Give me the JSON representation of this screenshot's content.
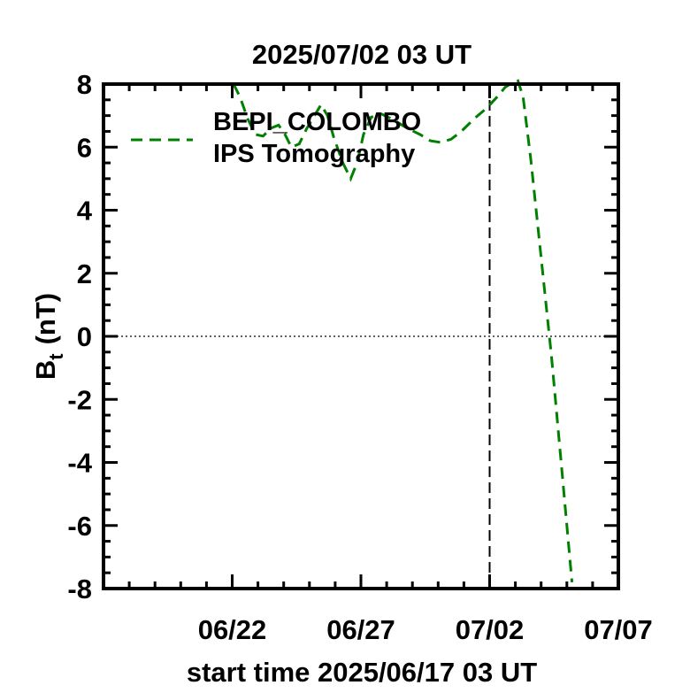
{
  "chart_data": {
    "type": "line",
    "title": "2025/07/02 03 UT",
    "xlabel": "start time 2025/06/17 03 UT",
    "ylabel_main": "B",
    "ylabel_sub": "t",
    "ylabel_unit": "(nT)",
    "x_unit": "days since 2025/06/17 03 UT",
    "xlim": [
      0,
      20
    ],
    "ylim": [
      -8,
      8
    ],
    "x_ticks": [
      {
        "x": 5,
        "label": "06/22"
      },
      {
        "x": 10,
        "label": "06/27"
      },
      {
        "x": 15,
        "label": "07/02"
      },
      {
        "x": 20,
        "label": "07/07"
      }
    ],
    "y_ticks": [
      {
        "y": 8,
        "label": "8"
      },
      {
        "y": 6,
        "label": "6"
      },
      {
        "y": 4,
        "label": "4"
      },
      {
        "y": 2,
        "label": "2"
      },
      {
        "y": 0,
        "label": "0"
      },
      {
        "y": -2,
        "label": "-2"
      },
      {
        "y": -4,
        "label": "-4"
      },
      {
        "y": -6,
        "label": "-6"
      },
      {
        "y": -8,
        "label": "-8"
      }
    ],
    "reference_vertical_x": 15,
    "reference_horizontal_y": 0,
    "legend": {
      "position": "top-left",
      "line1": "BEPI_COLOMBO",
      "line2": "IPS Tomography"
    },
    "series": [
      {
        "name": "BEPI_COLOMBO IPS Tomography",
        "color": "#008000",
        "style": "dashed",
        "points": [
          [
            5.05,
            8.0
          ],
          [
            5.3,
            7.6
          ],
          [
            5.6,
            6.9
          ],
          [
            5.9,
            6.4
          ],
          [
            6.2,
            6.35
          ],
          [
            6.5,
            6.6
          ],
          [
            6.8,
            6.7
          ],
          [
            7.05,
            6.4
          ],
          [
            7.3,
            6.0
          ],
          [
            7.6,
            6.1
          ],
          [
            7.9,
            6.6
          ],
          [
            8.2,
            7.0
          ],
          [
            8.45,
            7.35
          ],
          [
            8.7,
            7.0
          ],
          [
            8.95,
            6.3
          ],
          [
            9.3,
            5.5
          ],
          [
            9.6,
            5.0
          ],
          [
            9.85,
            5.5
          ],
          [
            10.1,
            6.4
          ],
          [
            10.4,
            6.95
          ],
          [
            10.8,
            7.05
          ],
          [
            11.3,
            6.85
          ],
          [
            11.8,
            6.6
          ],
          [
            12.3,
            6.4
          ],
          [
            12.7,
            6.2
          ],
          [
            13.1,
            6.15
          ],
          [
            13.5,
            6.25
          ],
          [
            13.9,
            6.5
          ],
          [
            14.4,
            6.9
          ],
          [
            14.9,
            7.25
          ],
          [
            15.3,
            7.6
          ],
          [
            15.6,
            7.9
          ],
          [
            15.8,
            8.0
          ],
          [
            16.1,
            8.1
          ],
          [
            16.3,
            7.6
          ],
          [
            16.6,
            5.6
          ],
          [
            17.0,
            2.5
          ],
          [
            17.4,
            -0.6
          ],
          [
            17.8,
            -4.2
          ],
          [
            18.2,
            -7.8
          ]
        ]
      }
    ]
  }
}
